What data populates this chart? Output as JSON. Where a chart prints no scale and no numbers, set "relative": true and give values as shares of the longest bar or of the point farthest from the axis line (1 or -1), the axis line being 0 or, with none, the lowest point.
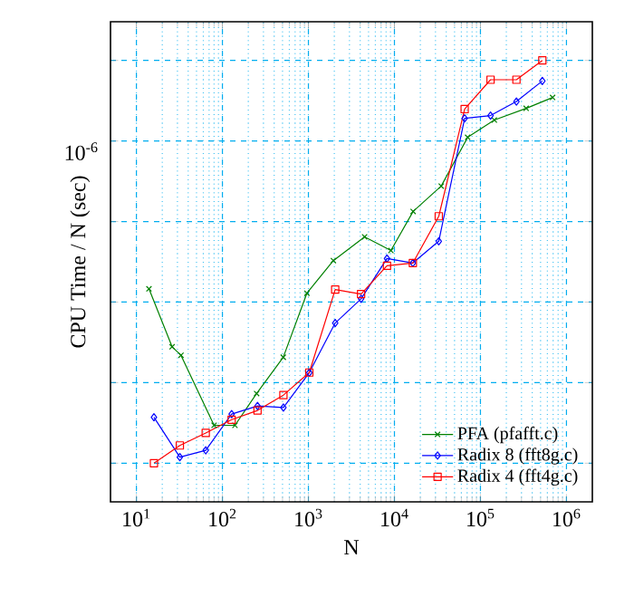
{
  "chart_data": {
    "type": "line",
    "xlabel": "N",
    "ylabel": "CPU Time / N (sec)",
    "log": "x",
    "grid": true,
    "legend": "bottom right",
    "relative": true,
    "annotations": [
      "10$^{-6}$"
    ],
    "xlim": [
      5,
      2000000
    ],
    "xticks": [
      {
        "value": 10,
        "label": "10$^{1}$"
      },
      {
        "value": 100,
        "label": "10$^{2}$"
      },
      {
        "value": 1000,
        "label": "10$^{3}$"
      },
      {
        "value": 10000,
        "label": "10$^{4}$"
      },
      {
        "value": 100000,
        "label": "10$^{5}$"
      },
      {
        "value": 1000000,
        "label": "10$^{6}$"
      }
    ],
    "series": [
      {
        "name": "PFA (pfafft.c)",
        "color": "#008000",
        "marker": "cross",
        "x": [
          14,
          26,
          33,
          80,
          140,
          250,
          510,
          960,
          1950,
          4500,
          9100,
          16500,
          35000,
          71000,
          145000,
          340000,
          690000
        ],
        "values": [
          0.433,
          0.289,
          0.268,
          0.094,
          0.094,
          0.173,
          0.263,
          0.422,
          0.503,
          0.562,
          0.528,
          0.625,
          0.688,
          0.809,
          0.852,
          0.881,
          0.908
        ]
      },
      {
        "name": "Radix 8 (fft8g.c)",
        "color": "#0000ff",
        "marker": "diamond",
        "x": [
          16,
          32,
          64,
          128,
          256,
          512,
          1024,
          2048,
          4096,
          8192,
          16384,
          32768,
          65536,
          131072,
          262144,
          524288
        ],
        "values": [
          0.114,
          0.015,
          0.032,
          0.122,
          0.142,
          0.138,
          0.225,
          0.348,
          0.408,
          0.508,
          0.497,
          0.551,
          0.856,
          0.863,
          0.898,
          0.949
        ]
      },
      {
        "name": "Radix 4 (fft4g.c)",
        "color": "#ff0000",
        "marker": "square",
        "x": [
          16,
          32,
          64,
          128,
          256,
          512,
          1024,
          2048,
          4096,
          8192,
          16384,
          32768,
          65536,
          131072,
          262144,
          524288
        ],
        "values": [
          0,
          0.044,
          0.075,
          0.108,
          0.131,
          0.169,
          0.225,
          0.431,
          0.42,
          0.49,
          0.497,
          0.613,
          0.879,
          0.952,
          0.952,
          1
        ]
      }
    ]
  }
}
